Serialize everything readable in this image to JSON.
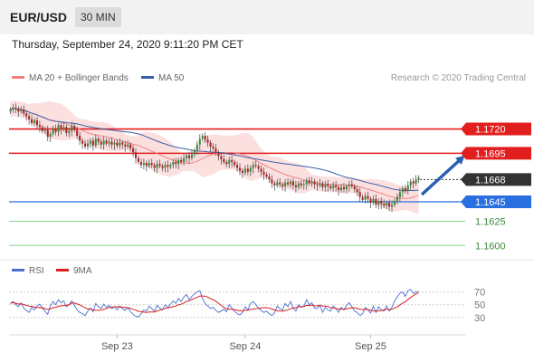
{
  "header": {
    "pair": "EUR/USD",
    "timeframe": "30 MIN"
  },
  "datetime": "Thursday, September 24, 2020 9:11:20 PM CET",
  "legend": {
    "items": [
      {
        "label": "MA 20 + Bollinger Bands",
        "color": "#f08080"
      },
      {
        "label": "MA 50",
        "color": "#3c5fa8"
      }
    ],
    "credit": "Research © 2020 Trading Central"
  },
  "rsi_legend": {
    "items": [
      {
        "label": "RSI",
        "color": "#4a6fd1"
      },
      {
        "label": "9MA",
        "color": "#d91f1f"
      }
    ]
  },
  "chart_data": {
    "type": "candlestick",
    "price_range": [
      1.159,
      1.1755
    ],
    "levels": [
      {
        "value": 1.172,
        "label": "1.1720",
        "style": "resistance",
        "color": "#e21f1f"
      },
      {
        "value": 1.1695,
        "label": "1.1695",
        "style": "resistance",
        "color": "#e21f1f"
      },
      {
        "value": 1.1668,
        "label": "1.1668",
        "style": "current",
        "color": "#333333"
      },
      {
        "value": 1.1645,
        "label": "1.1645",
        "style": "pivot",
        "color": "#2a6fe0"
      },
      {
        "value": 1.1625,
        "label": "1.1625",
        "style": "support",
        "color": "#3c9a3c"
      },
      {
        "value": 1.16,
        "label": "1.1600",
        "style": "support",
        "color": "#3c9a3c"
      }
    ],
    "close_series": [
      1.174,
      1.1742,
      1.1741,
      1.1738,
      1.174,
      1.1736,
      1.1733,
      1.173,
      1.1726,
      1.1729,
      1.1724,
      1.1722,
      1.1718,
      1.1719,
      1.1712,
      1.1715,
      1.172,
      1.1717,
      1.1724,
      1.172,
      1.1722,
      1.1716,
      1.1718,
      1.1723,
      1.1719,
      1.1713,
      1.1708,
      1.1705,
      1.1702,
      1.1705,
      1.1708,
      1.1703,
      1.171,
      1.1707,
      1.1704,
      1.1708,
      1.1705,
      1.1707,
      1.1704,
      1.1706,
      1.1703,
      1.1706,
      1.1704,
      1.1702,
      1.1704,
      1.17,
      1.1696,
      1.169,
      1.1686,
      1.1683,
      1.1685,
      1.1682,
      1.1685,
      1.1683,
      1.168,
      1.1684,
      1.1682,
      1.168,
      1.1683,
      1.1681,
      1.1683,
      1.1686,
      1.1684,
      1.1688,
      1.1686,
      1.169,
      1.1693,
      1.169,
      1.1694,
      1.1698,
      1.1704,
      1.171,
      1.1713,
      1.1709,
      1.1706,
      1.1702,
      1.17,
      1.1696,
      1.1692,
      1.1689,
      1.1686,
      1.1684,
      1.1688,
      1.1686,
      1.1683,
      1.168,
      1.1677,
      1.1675,
      1.1679,
      1.1676,
      1.168,
      1.1683,
      1.1682,
      1.1679,
      1.1676,
      1.1673,
      1.1671,
      1.1668,
      1.1664,
      1.1662,
      1.1665,
      1.1663,
      1.1661,
      1.1665,
      1.1663,
      1.1666,
      1.1662,
      1.166,
      1.1664,
      1.1662,
      1.1663,
      1.1667,
      1.1664,
      1.1666,
      1.1663,
      1.1662,
      1.1664,
      1.166,
      1.1663,
      1.1661,
      1.1659,
      1.1662,
      1.166,
      1.1657,
      1.166,
      1.1658,
      1.1661,
      1.1663,
      1.1661,
      1.1658,
      1.1655,
      1.165,
      1.1647,
      1.1651,
      1.1648,
      1.1644,
      1.1648,
      1.1642,
      1.1646,
      1.1643,
      1.1641,
      1.1644,
      1.164,
      1.1642,
      1.1646,
      1.165,
      1.1655,
      1.1659,
      1.1656,
      1.1662,
      1.1666,
      1.1664,
      1.1668,
      1.167
    ],
    "x_labels": [
      {
        "label": "Sep 23",
        "index": 40
      },
      {
        "label": "Sep 24",
        "index": 88
      },
      {
        "label": "Sep 25",
        "index": 135
      }
    ],
    "rsi_levels": [
      70,
      50,
      30
    ],
    "rsi_range": [
      10,
      85
    ],
    "rsi_series": [
      52,
      55,
      50,
      47,
      53,
      45,
      41,
      38,
      46,
      42,
      48,
      51,
      44,
      40,
      35,
      48,
      55,
      50,
      58,
      53,
      56,
      47,
      50,
      56,
      49,
      42,
      38,
      36,
      33,
      40,
      45,
      39,
      52,
      47,
      44,
      51,
      46,
      49,
      44,
      47,
      42,
      48,
      44,
      41,
      46,
      39,
      35,
      32,
      31,
      36,
      42,
      40,
      48,
      44,
      40,
      49,
      45,
      42,
      50,
      46,
      51,
      56,
      52,
      60,
      55,
      62,
      66,
      58,
      63,
      67,
      70,
      72,
      60,
      52,
      48,
      44,
      46,
      41,
      38,
      40,
      43,
      39,
      50,
      45,
      40,
      36,
      34,
      38,
      47,
      42,
      52,
      55,
      50,
      45,
      41,
      38,
      40,
      36,
      33,
      37,
      48,
      44,
      42,
      52,
      47,
      55,
      45,
      40,
      50,
      46,
      48,
      58,
      50,
      53,
      45,
      44,
      49,
      38,
      46,
      42,
      40,
      48,
      44,
      38,
      46,
      42,
      49,
      53,
      47,
      40,
      38,
      33,
      36,
      46,
      42,
      37,
      48,
      38,
      47,
      42,
      40,
      48,
      40,
      46,
      56,
      62,
      68,
      70,
      63,
      72,
      74,
      68,
      70,
      71
    ]
  }
}
